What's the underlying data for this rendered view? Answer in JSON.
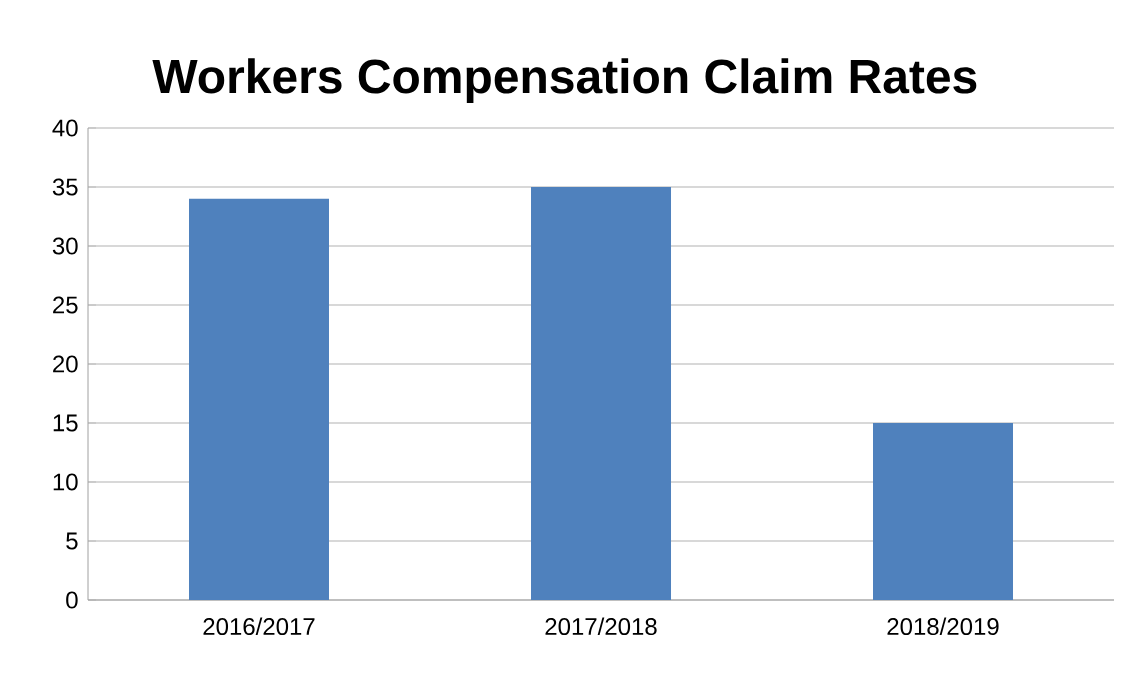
{
  "chart_data": {
    "type": "bar",
    "title": "Workers Compensation Claim Rates",
    "categories": [
      "2016/2017",
      "2017/2018",
      "2018/2019"
    ],
    "values": [
      34,
      35,
      15
    ],
    "color": "#4f81bd",
    "ylim": [
      0,
      40
    ],
    "yticks": [
      0,
      5,
      10,
      15,
      20,
      25,
      30,
      35,
      40
    ],
    "grid": "y"
  }
}
